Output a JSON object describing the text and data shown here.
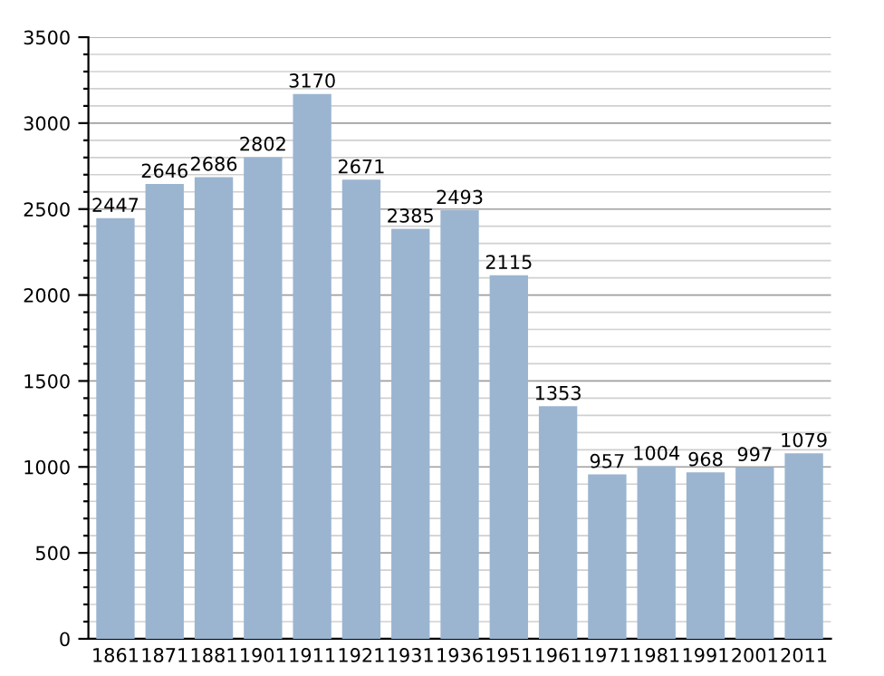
{
  "chart_data": {
    "type": "bar",
    "categories": [
      "1861",
      "1871",
      "1881",
      "1901",
      "1911",
      "1921",
      "1931",
      "1936",
      "1951",
      "1961",
      "1971",
      "1981",
      "1991",
      "2001",
      "2011"
    ],
    "values": [
      2447,
      2646,
      2686,
      2802,
      3170,
      2671,
      2385,
      2493,
      2115,
      1353,
      957,
      1004,
      968,
      997,
      1079
    ],
    "color": "#9bb5d0",
    "ylim": [
      0,
      3500
    ],
    "yticks": [
      0,
      {
        "value": 100,
        "label": null
      },
      {
        "value": 200,
        "label": null
      },
      {
        "value": 300,
        "label": null
      },
      {
        "value": 400,
        "label": null
      },
      500,
      {
        "value": 600,
        "label": null
      },
      {
        "value": 700,
        "label": null
      },
      {
        "value": 800,
        "label": null
      },
      {
        "value": 900,
        "label": null
      },
      1000,
      {
        "value": 1100,
        "label": null
      },
      {
        "value": 1200,
        "label": null
      },
      {
        "value": 1300,
        "label": null
      },
      {
        "value": 1400,
        "label": null
      },
      1500,
      {
        "value": 1600,
        "label": null
      },
      {
        "value": 1700,
        "label": null
      },
      {
        "value": 1800,
        "label": null
      },
      {
        "value": 1900,
        "label": null
      },
      2000,
      {
        "value": 2100,
        "label": null
      },
      {
        "value": 2200,
        "label": null
      },
      {
        "value": 2300,
        "label": null
      },
      {
        "value": 2400,
        "label": null
      },
      2500,
      {
        "value": 2600,
        "label": null
      },
      {
        "value": 2700,
        "label": null
      },
      {
        "value": 2800,
        "label": null
      },
      {
        "value": 2900,
        "label": null
      },
      3000,
      {
        "value": 3100,
        "label": null
      },
      {
        "value": 3200,
        "label": null
      },
      {
        "value": 3300,
        "label": null
      },
      {
        "value": 3400,
        "label": null
      },
      3500
    ],
    "grid": "y",
    "data_labels": true
  }
}
